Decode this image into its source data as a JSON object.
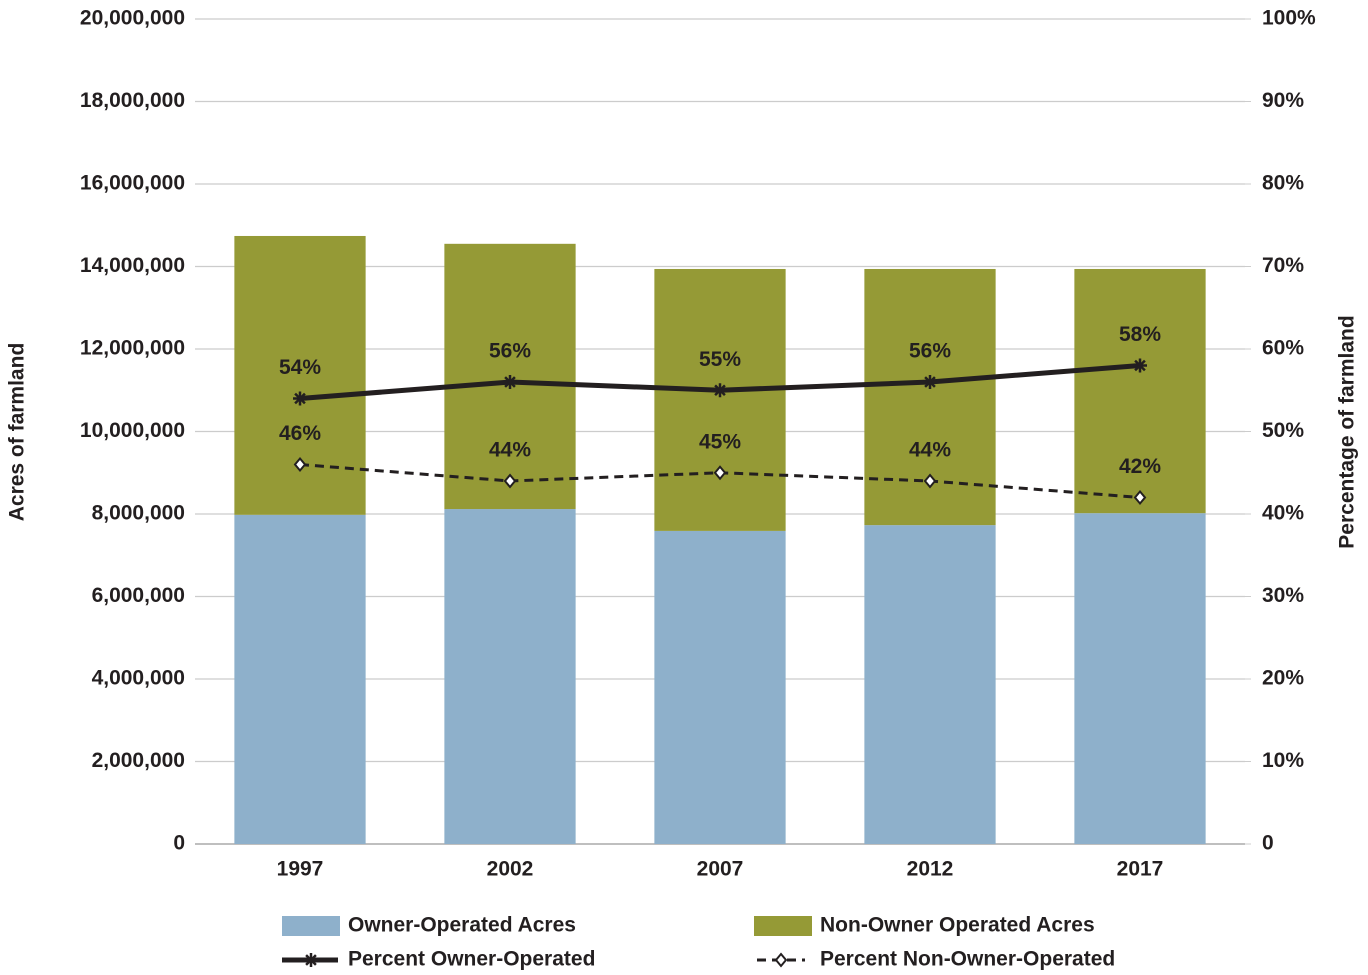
{
  "chart_data": {
    "type": "combo",
    "categories": [
      "1997",
      "2002",
      "2007",
      "2012",
      "2017"
    ],
    "y_label": "Acres of farmland",
    "y2_label": "Percentage of farmland",
    "ylim": [
      0,
      20000000
    ],
    "yticks": [
      0,
      {
        "value": 2000000,
        "label": "2,000,000"
      },
      {
        "value": 4000000,
        "label": "4,000,000"
      },
      {
        "value": 6000000,
        "label": "6,000,000"
      },
      {
        "value": 8000000,
        "label": "8,000,000"
      },
      {
        "value": 10000000,
        "label": "10,000,000"
      },
      {
        "value": 12000000,
        "label": "12,000,000"
      },
      {
        "value": 14000000,
        "label": "14,000,000"
      },
      {
        "value": 16000000,
        "label": "16,000,000"
      },
      {
        "value": 18000000,
        "label": "18,000,000"
      },
      {
        "value": 20000000,
        "label": "20,000,000"
      }
    ],
    "y2lim": [
      0,
      100
    ],
    "y2ticks": [
      0,
      {
        "value": 10,
        "label": "10%"
      },
      {
        "value": 20,
        "label": "20%"
      },
      {
        "value": 30,
        "label": "30%"
      },
      {
        "value": 40,
        "label": "40%"
      },
      {
        "value": 50,
        "label": "50%"
      },
      {
        "value": 60,
        "label": "60%"
      },
      {
        "value": 70,
        "label": "70%"
      },
      {
        "value": 80,
        "label": "80%"
      },
      {
        "value": 90,
        "label": "90%"
      },
      {
        "value": 100,
        "label": "100%"
      }
    ],
    "grid": true,
    "legend": "bottom",
    "series": [
      {
        "name": "Owner-Operated Acres",
        "type": "bar",
        "color": "#8eb0cb",
        "values": [
          7980000,
          8120000,
          7590000,
          7730000,
          8020000
        ]
      },
      {
        "name": "Non-Owner Operated Acres",
        "type": "bar",
        "color": "#959a36",
        "values": [
          6760000,
          6430000,
          6350000,
          6210000,
          5920000
        ]
      },
      {
        "name": "Percent Owner-Operated",
        "type": "line",
        "axis": "y2",
        "color": "#231f20",
        "marker": "star",
        "dashed": false,
        "values": [
          54,
          56,
          55,
          56,
          58
        ],
        "value_labels": [
          "54%",
          "56%",
          "55%",
          "56%",
          "58%"
        ]
      },
      {
        "name": "Percent Non-Owner-Operated",
        "type": "line",
        "axis": "y2",
        "color": "#231f20",
        "marker": "diamond",
        "dashed": true,
        "values": [
          46,
          44,
          45,
          44,
          42
        ],
        "value_labels": [
          "46%",
          "44%",
          "45%",
          "44%",
          "42%"
        ]
      }
    ]
  }
}
